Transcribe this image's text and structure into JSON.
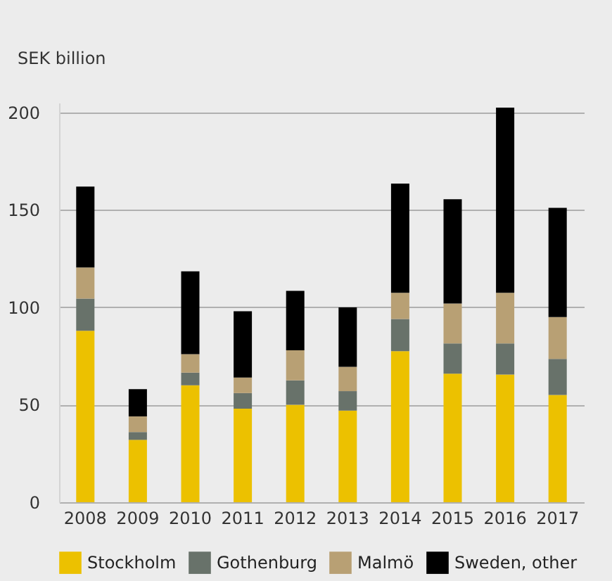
{
  "chart_data": {
    "type": "bar",
    "stacked": true,
    "ylabel": "SEK billion",
    "categories": [
      "2008",
      "2009",
      "2010",
      "2011",
      "2012",
      "2013",
      "2014",
      "2015",
      "2016",
      "2017"
    ],
    "series": [
      {
        "name": "Stockholm",
        "color": "#ecc100",
        "values": [
          88,
          32,
          60,
          48,
          50,
          47,
          77.5,
          66,
          65.5,
          55
        ]
      },
      {
        "name": "Gothenburg",
        "color": "#68726a",
        "values": [
          16.5,
          4,
          6.5,
          8,
          12.5,
          10,
          16.5,
          15.5,
          16,
          18.5
        ]
      },
      {
        "name": "Malmö",
        "color": "#b8a074",
        "values": [
          16,
          8,
          9.5,
          8,
          15.5,
          12.5,
          13.5,
          20.5,
          26,
          21.5
        ]
      },
      {
        "name": "Sweden, other",
        "color": "#000000",
        "values": [
          41.5,
          14,
          42.5,
          34,
          30.5,
          30.5,
          56,
          53.5,
          95,
          56
        ]
      }
    ],
    "ylim": [
      0,
      205
    ],
    "yticks": [
      0,
      50,
      100,
      150,
      200
    ],
    "grid": "y",
    "legend": "bottom"
  }
}
